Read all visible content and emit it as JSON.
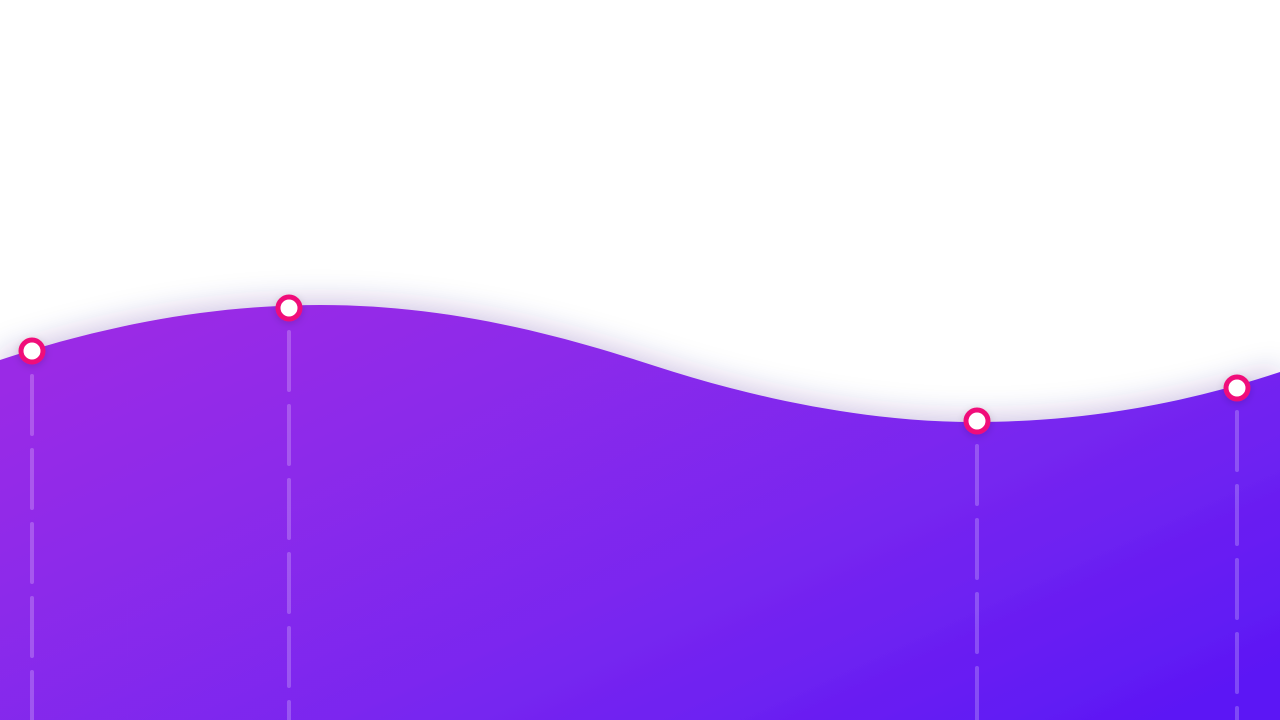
{
  "colors": {
    "background": "#ffffff",
    "wave_start": "#9a2ae6",
    "wave_mid": "#7b28ef",
    "wave_end": "#5b17f5",
    "marker_ring": "#f0107a",
    "marker_fill": "#ffffff",
    "guide_line": "#ffffff"
  },
  "markers": [
    {
      "icon": "circle-marker-icon"
    },
    {
      "icon": "circle-marker-icon"
    },
    {
      "icon": "circle-marker-icon"
    },
    {
      "icon": "circle-marker-icon"
    }
  ]
}
